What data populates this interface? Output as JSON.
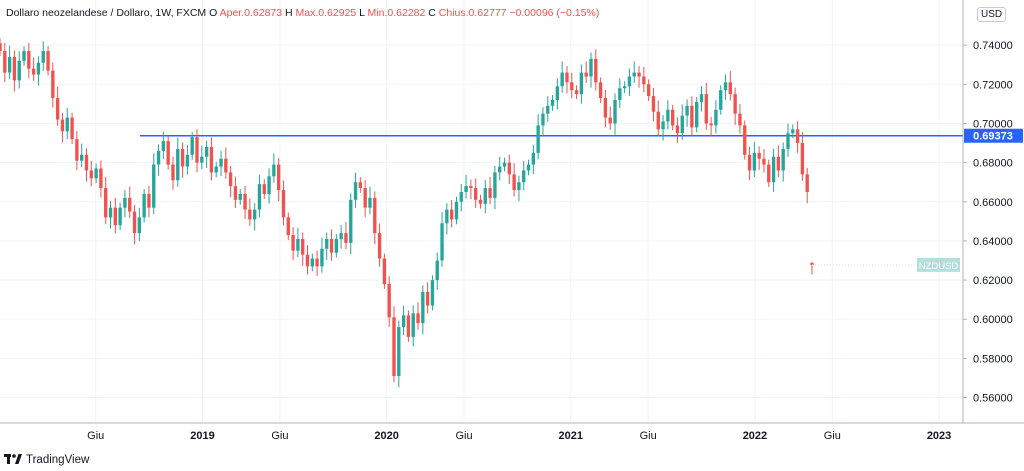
{
  "legend": {
    "symbol": "Dollaro neozelandese / Dollaro, 1W, FXCM",
    "open_label": "O",
    "open_value": "Aper.0.62873",
    "high_label": "H",
    "high_value": "Max.0.62925",
    "low_label": "L",
    "low_value": "Min.0.62282",
    "close_label": "C",
    "close_value": "Chius.0.62777",
    "change": "−0.00096 (−0.15%)"
  },
  "currency_button": "USD",
  "branding": "TradingView",
  "colors": {
    "up": "#26a69a",
    "down": "#ef5350",
    "hline": "#2962ff",
    "symbol_tag": "#b2dfdb",
    "grid": "#f0f3fa",
    "axis_text": "#131722"
  },
  "chart_data": {
    "type": "candlestick",
    "symbol": "NZDUSD",
    "interval": "1W",
    "y_ticks": [
      "0.56000",
      "0.58000",
      "0.60000",
      "0.62000",
      "0.64000",
      "0.66000",
      "0.68000",
      "0.70000",
      "0.72000",
      "0.74000"
    ],
    "ylim": [
      0.547,
      0.76
    ],
    "x_ticks": [
      "Giu",
      "2019",
      "Giu",
      "2020",
      "Giu",
      "2021",
      "Giu",
      "2022",
      "Giu",
      "2023"
    ],
    "x_tick_dates": [
      2018.42,
      2019.0,
      2019.42,
      2020.0,
      2020.42,
      2021.0,
      2021.42,
      2022.0,
      2022.42,
      2023.0
    ],
    "xlim": [
      2017.9,
      2023.13
    ],
    "last_date": 2022.31,
    "horizontal_line": {
      "value": 0.69373,
      "label": "0.69373",
      "start_date": 2018.66
    },
    "symbol_tag": {
      "label": "NZDUSD",
      "value": 0.62777
    },
    "last_bar": {
      "open": 0.62873,
      "high": 0.62925,
      "low": 0.62282,
      "close": 0.62777
    },
    "closes": [
      0.737,
      0.726,
      0.734,
      0.722,
      0.732,
      0.737,
      0.728,
      0.725,
      0.731,
      0.737,
      0.727,
      0.713,
      0.702,
      0.696,
      0.703,
      0.692,
      0.681,
      0.684,
      0.676,
      0.672,
      0.677,
      0.667,
      0.652,
      0.657,
      0.648,
      0.657,
      0.662,
      0.655,
      0.644,
      0.652,
      0.664,
      0.657,
      0.679,
      0.686,
      0.691,
      0.679,
      0.671,
      0.687,
      0.678,
      0.684,
      0.693,
      0.68,
      0.683,
      0.688,
      0.675,
      0.678,
      0.682,
      0.675,
      0.668,
      0.661,
      0.664,
      0.656,
      0.651,
      0.656,
      0.669,
      0.664,
      0.673,
      0.679,
      0.666,
      0.652,
      0.643,
      0.635,
      0.641,
      0.633,
      0.627,
      0.631,
      0.627,
      0.636,
      0.641,
      0.634,
      0.641,
      0.644,
      0.639,
      0.661,
      0.67,
      0.667,
      0.657,
      0.662,
      0.644,
      0.631,
      0.618,
      0.601,
      0.571,
      0.596,
      0.602,
      0.591,
      0.603,
      0.598,
      0.614,
      0.607,
      0.62,
      0.63,
      0.649,
      0.656,
      0.651,
      0.66,
      0.665,
      0.668,
      0.667,
      0.661,
      0.659,
      0.667,
      0.662,
      0.675,
      0.678,
      0.68,
      0.674,
      0.666,
      0.67,
      0.676,
      0.679,
      0.685,
      0.699,
      0.705,
      0.709,
      0.712,
      0.719,
      0.726,
      0.721,
      0.717,
      0.715,
      0.726,
      0.724,
      0.733,
      0.721,
      0.713,
      0.703,
      0.7,
      0.712,
      0.718,
      0.719,
      0.724,
      0.726,
      0.724,
      0.72,
      0.714,
      0.706,
      0.697,
      0.701,
      0.707,
      0.699,
      0.695,
      0.704,
      0.709,
      0.698,
      0.711,
      0.715,
      0.7,
      0.699,
      0.707,
      0.717,
      0.721,
      0.715,
      0.705,
      0.699,
      0.684,
      0.676,
      0.685,
      0.682,
      0.679,
      0.67,
      0.683,
      0.676,
      0.687,
      0.695,
      0.697,
      0.69,
      0.674,
      0.665,
      0.628
    ]
  }
}
